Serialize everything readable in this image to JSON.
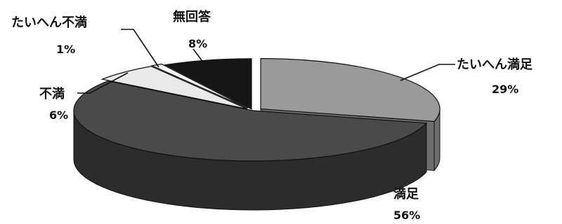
{
  "chart_data": {
    "type": "pie",
    "style": "3d-exploded",
    "title": "",
    "legend": "none",
    "slices": [
      {
        "label": "たいへん満足",
        "value": 29,
        "value_label": "29%",
        "color": "#9a9a9a",
        "side": "#6e6e6e"
      },
      {
        "label": "満足",
        "value": 56,
        "value_label": "56%",
        "color": "#4a4a4a",
        "side": "#2c2c2c"
      },
      {
        "label": "不満",
        "value": 6,
        "value_label": "6%",
        "color": "#e9e9e9",
        "side": "#bdbdbd"
      },
      {
        "label": "たいへん不満",
        "value": 1,
        "value_label": "1%",
        "color": "#f7f7f7",
        "side": "#c9c9c9"
      },
      {
        "label": "無回答",
        "value": 8,
        "value_label": "8%",
        "color": "#161616",
        "side": "#050505"
      }
    ]
  }
}
